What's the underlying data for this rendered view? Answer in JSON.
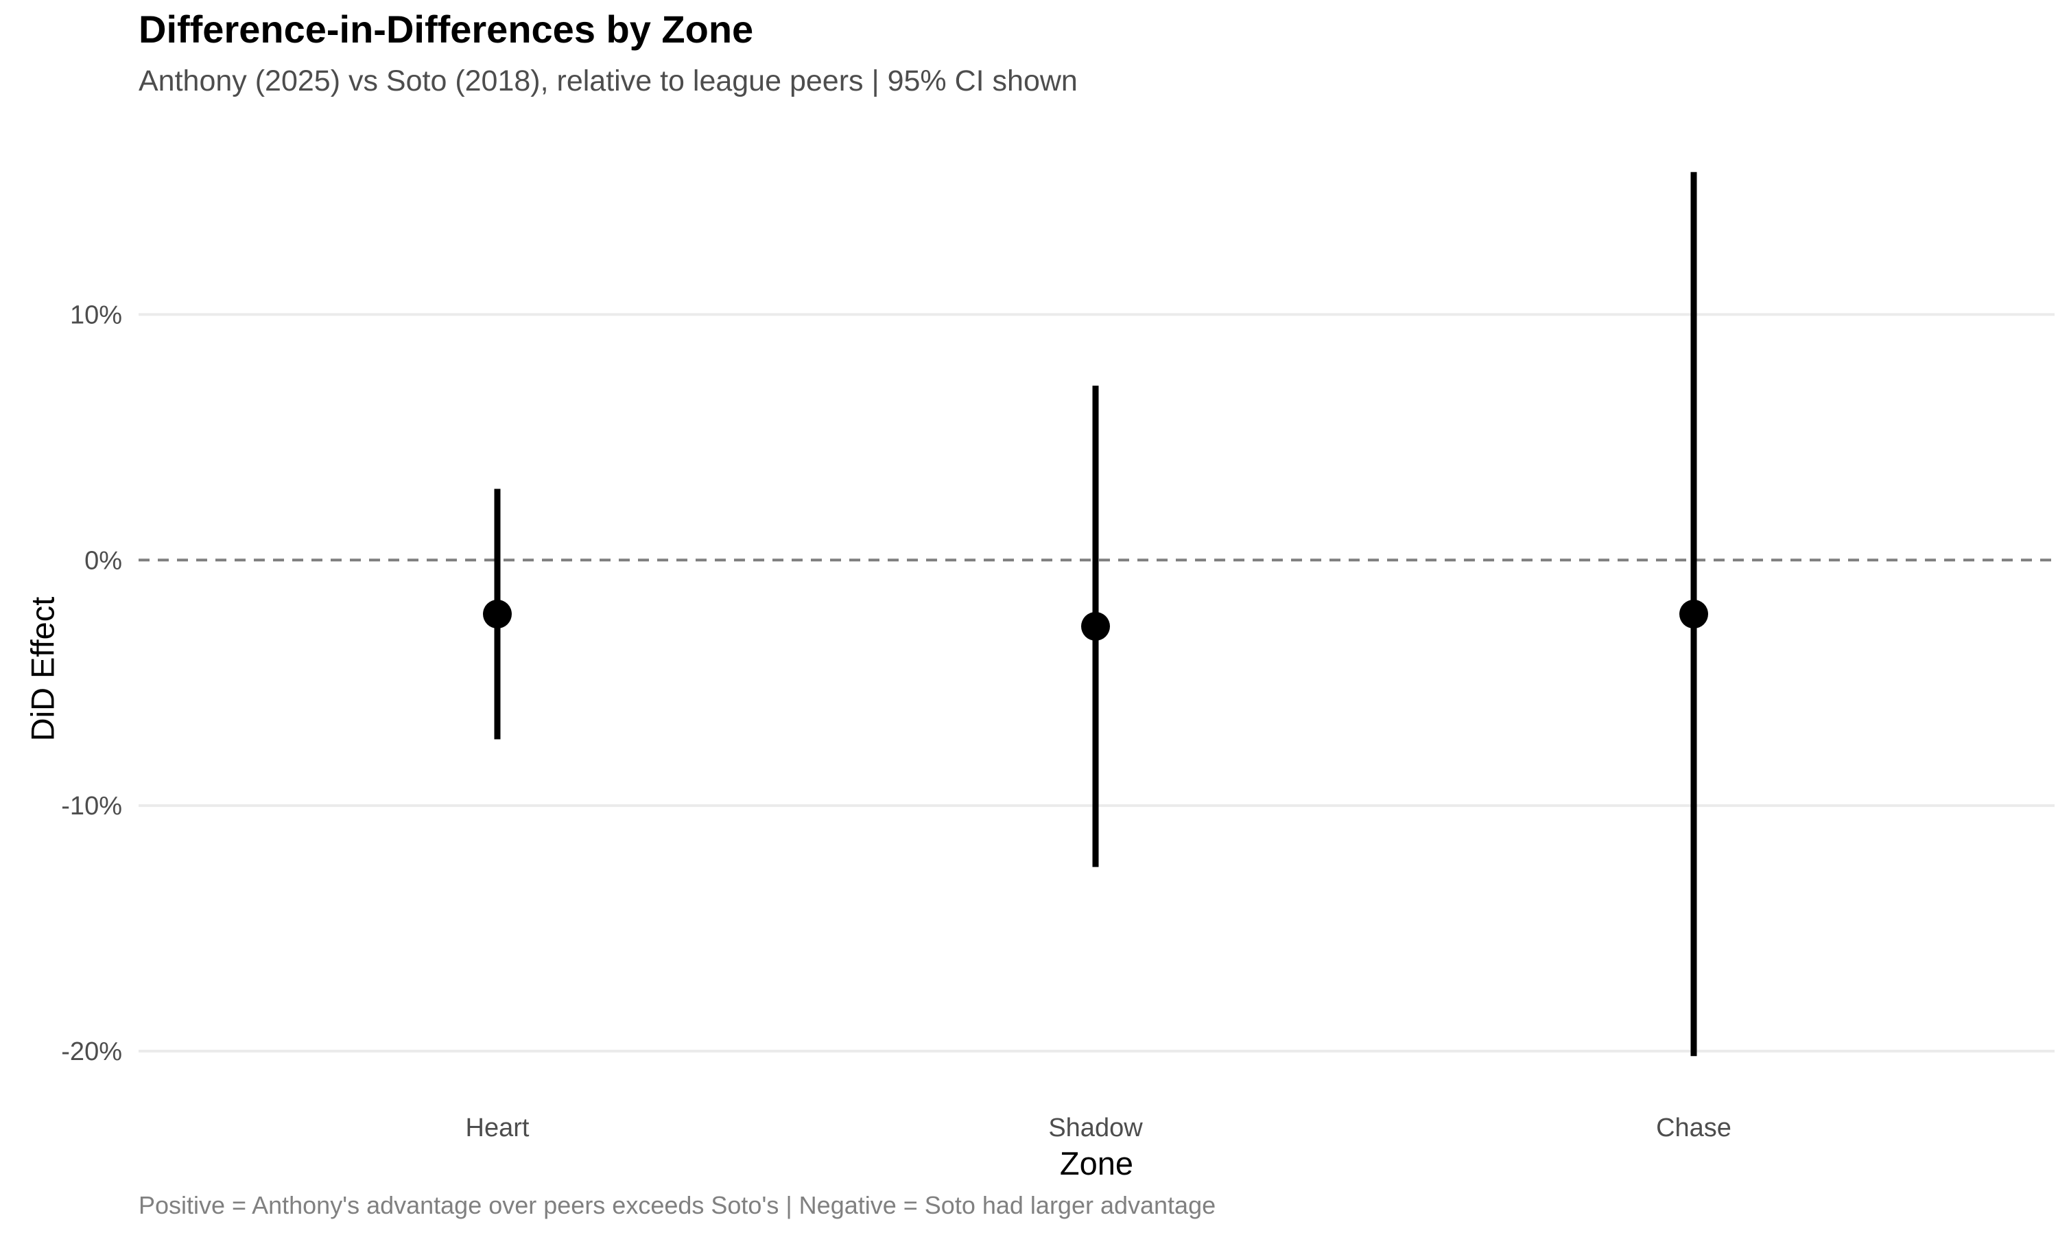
{
  "chart_data": {
    "type": "errorbar",
    "title": "Difference-in-Differences by Zone",
    "subtitle": "Anthony (2025) vs Soto (2018), relative to league peers | 95% CI shown",
    "caption": "Positive = Anthony's advantage over peers exceeds Soto's | Negative = Soto had larger advantage",
    "xlabel": "Zone",
    "ylabel": "DiD Effect",
    "categories": [
      "Heart",
      "Shadow",
      "Chase"
    ],
    "estimates": [
      -2.2,
      -2.7,
      -2.2
    ],
    "ci_lower": [
      -7.3,
      -12.5,
      -20.2
    ],
    "ci_upper": [
      2.9,
      7.1,
      15.8
    ],
    "y_ticks": [
      -20,
      -10,
      0,
      10
    ],
    "y_tick_labels": [
      "-20%",
      "-10%",
      "0%",
      "10%"
    ],
    "ylim": [
      -21.2,
      16.8
    ],
    "reference_line": 0,
    "reference_line_style": "dashed",
    "grid": "horizontal-major",
    "colors": {
      "point": "#000000",
      "errorbar": "#000000",
      "gridline": "#ebebeb",
      "reference": "#7f7f7f"
    }
  }
}
